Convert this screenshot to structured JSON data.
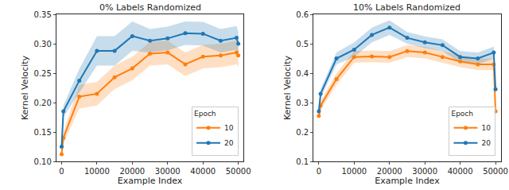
{
  "chart_data": [
    {
      "type": "line",
      "title": "0% Labels Randomized",
      "x_label": "Example Index",
      "y_label": "Kernel Velocity",
      "x": [
        0,
        500,
        5000,
        10000,
        15000,
        20000,
        25000,
        30000,
        35000,
        40000,
        45000,
        49500,
        50000
      ],
      "series": [
        {
          "name": "10",
          "color": "#ff7f0e",
          "marker": "circle",
          "values": [
            0.112,
            0.14,
            0.21,
            0.215,
            0.243,
            0.258,
            0.283,
            0.285,
            0.265,
            0.278,
            0.28,
            0.285,
            0.28
          ],
          "error": [
            0.005,
            0.01,
            0.02,
            0.02,
            0.02,
            0.02,
            0.02,
            0.02,
            0.02,
            0.02,
            0.02,
            0.02,
            0.02
          ]
        },
        {
          "name": "20",
          "color": "#1f77b4",
          "marker": "circle",
          "values": [
            0.125,
            0.185,
            0.237,
            0.288,
            0.288,
            0.313,
            0.305,
            0.309,
            0.318,
            0.317,
            0.305,
            0.31,
            0.3
          ],
          "error": [
            0.005,
            0.01,
            0.02,
            0.025,
            0.025,
            0.025,
            0.02,
            0.02,
            0.02,
            0.02,
            0.02,
            0.02,
            0.02
          ]
        }
      ],
      "xlim": [
        -1500,
        51500
      ],
      "xticks": [
        0,
        10000,
        20000,
        30000,
        40000,
        50000
      ],
      "ylim": [
        0.1,
        0.35
      ],
      "yticks": [
        {
          "value": 0.1,
          "label": "0.10"
        },
        {
          "value": 0.15,
          "label": "0.15"
        },
        {
          "value": 0.2,
          "label": "0.20"
        },
        {
          "value": 0.25,
          "label": "0.25"
        },
        {
          "value": 0.3,
          "label": "0.30"
        },
        {
          "value": 0.35,
          "label": "0.35"
        }
      ],
      "grid": false,
      "legend": "lower right",
      "legend_title": "Epoch"
    },
    {
      "type": "line",
      "title": "10% Labels Randomized",
      "x_label": "Example Index",
      "y_label": "Kernel Velocity",
      "x": [
        0,
        500,
        5000,
        10000,
        15000,
        20000,
        25000,
        30000,
        35000,
        40000,
        45000,
        49500,
        50000
      ],
      "series": [
        {
          "name": "10",
          "color": "#ff7f0e",
          "marker": "circle",
          "values": [
            0.255,
            0.29,
            0.38,
            0.455,
            0.457,
            0.455,
            0.475,
            0.47,
            0.455,
            0.44,
            0.43,
            0.43,
            0.27
          ],
          "error": [
            0.01,
            0.015,
            0.02,
            0.02,
            0.02,
            0.02,
            0.02,
            0.02,
            0.02,
            0.02,
            0.02,
            0.02,
            0.01
          ]
        },
        {
          "name": "20",
          "color": "#1f77b4",
          "marker": "circle",
          "values": [
            0.27,
            0.33,
            0.45,
            0.48,
            0.53,
            0.555,
            0.52,
            0.505,
            0.495,
            0.455,
            0.45,
            0.47,
            0.345
          ],
          "error": [
            0.01,
            0.015,
            0.02,
            0.025,
            0.025,
            0.025,
            0.02,
            0.02,
            0.02,
            0.02,
            0.02,
            0.02,
            0.01
          ]
        }
      ],
      "xlim": [
        -1500,
        51500
      ],
      "xticks": [
        0,
        10000,
        20000,
        30000,
        40000,
        50000
      ],
      "ylim": [
        0.1,
        0.6
      ],
      "yticks": [
        0.1,
        0.2,
        0.3,
        0.4,
        0.5,
        0.6
      ],
      "grid": false,
      "legend": "lower right",
      "legend_title": "Epoch"
    }
  ]
}
